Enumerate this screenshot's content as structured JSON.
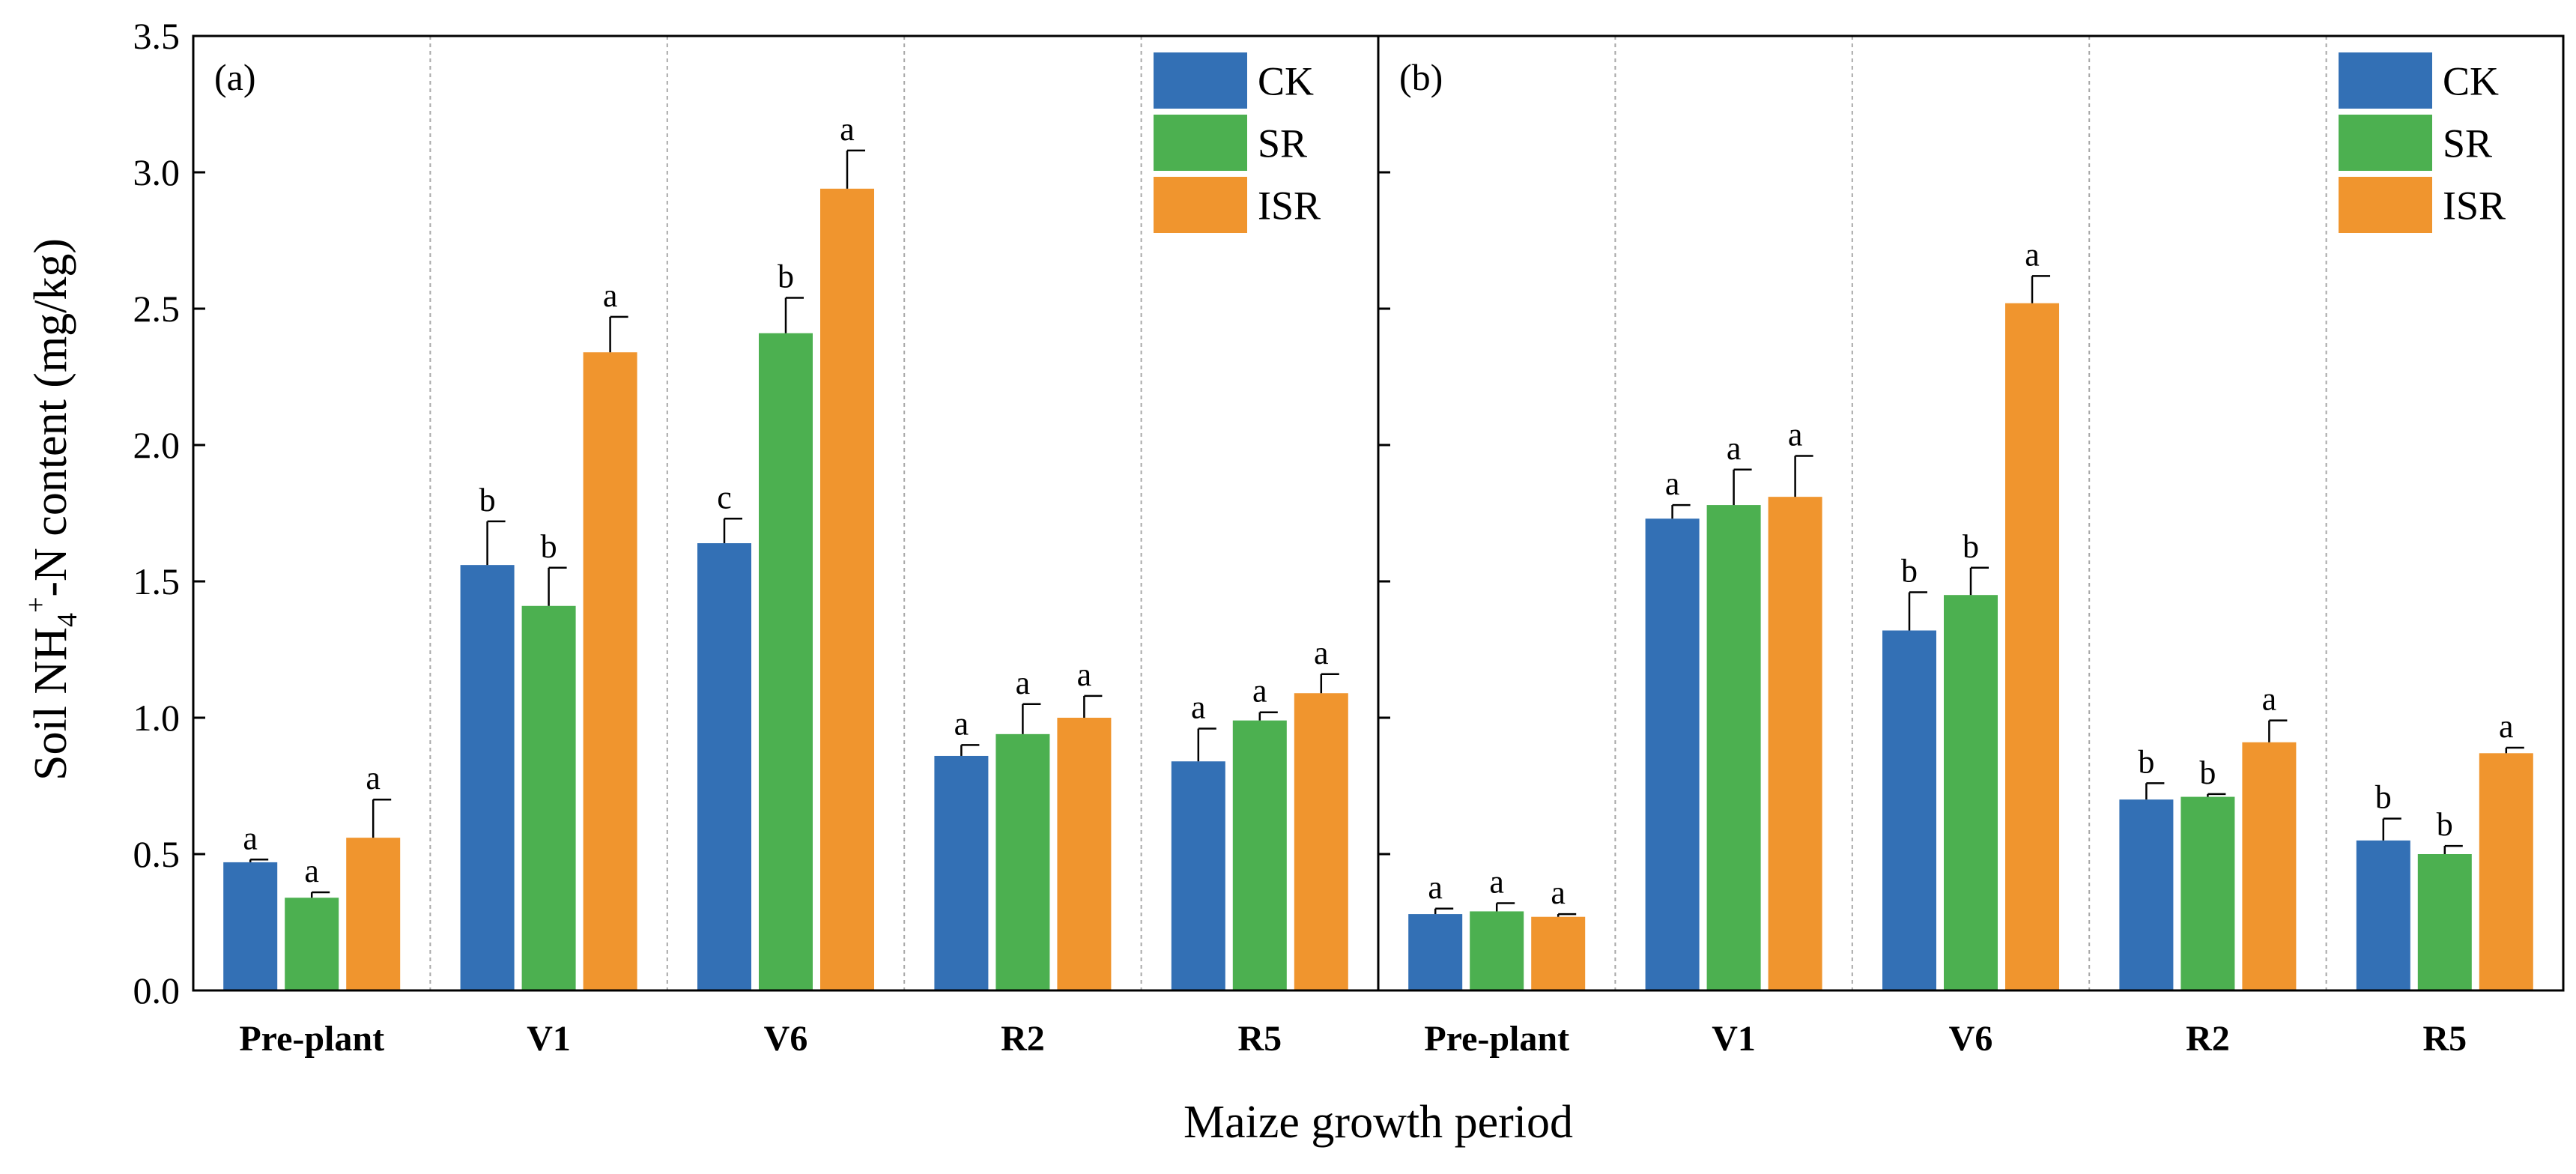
{
  "chart_data": {
    "type": "bar",
    "ylabel": {
      "base": "Soil NH",
      "sub": "4",
      "sup": "+",
      "rest": "-N content (mg/kg)"
    },
    "xlabel": "Maize growth period",
    "ylim": [
      0,
      3.5
    ],
    "yticks": [
      "0.0",
      "0.5",
      "1.0",
      "1.5",
      "2.0",
      "2.5",
      "3.0",
      "3.5"
    ],
    "categories": [
      "Pre-plant",
      "V1",
      "V6",
      "R2",
      "R5"
    ],
    "series_colors": {
      "CK": "#3370B5",
      "SR": "#4CB050",
      "ISR": "#F0952E"
    },
    "panels": [
      {
        "label": "(a)",
        "legend": [
          "CK",
          "SR",
          "ISR"
        ],
        "series": [
          {
            "name": "CK",
            "values": [
              0.47,
              1.56,
              1.64,
              0.86,
              0.84
            ],
            "errors": [
              0.01,
              0.16,
              0.09,
              0.04,
              0.12
            ],
            "letters": [
              "a",
              "b",
              "c",
              "a",
              "a"
            ]
          },
          {
            "name": "SR",
            "values": [
              0.34,
              1.41,
              2.41,
              0.94,
              0.99
            ],
            "errors": [
              0.02,
              0.14,
              0.13,
              0.11,
              0.03
            ],
            "letters": [
              "a",
              "b",
              "b",
              "a",
              "a"
            ]
          },
          {
            "name": "ISR",
            "values": [
              0.56,
              2.34,
              2.94,
              1.0,
              1.09
            ],
            "errors": [
              0.14,
              0.13,
              0.14,
              0.08,
              0.07
            ],
            "letters": [
              "a",
              "a",
              "a",
              "a",
              "a"
            ]
          }
        ]
      },
      {
        "label": "(b)",
        "legend": [
          "CK",
          "SR",
          "ISR"
        ],
        "series": [
          {
            "name": "CK",
            "values": [
              0.28,
              1.73,
              1.32,
              0.7,
              0.55
            ],
            "errors": [
              0.02,
              0.05,
              0.14,
              0.06,
              0.08
            ],
            "letters": [
              "a",
              "a",
              "b",
              "b",
              "b"
            ]
          },
          {
            "name": "SR",
            "values": [
              0.29,
              1.78,
              1.45,
              0.71,
              0.5
            ],
            "errors": [
              0.03,
              0.13,
              0.1,
              0.01,
              0.03
            ],
            "letters": [
              "a",
              "a",
              "b",
              "b",
              "b"
            ]
          },
          {
            "name": "ISR",
            "values": [
              0.27,
              1.81,
              2.52,
              0.91,
              0.87
            ],
            "errors": [
              0.01,
              0.15,
              0.1,
              0.08,
              0.02
            ],
            "letters": [
              "a",
              "a",
              "a",
              "a",
              "a"
            ]
          }
        ]
      }
    ]
  }
}
